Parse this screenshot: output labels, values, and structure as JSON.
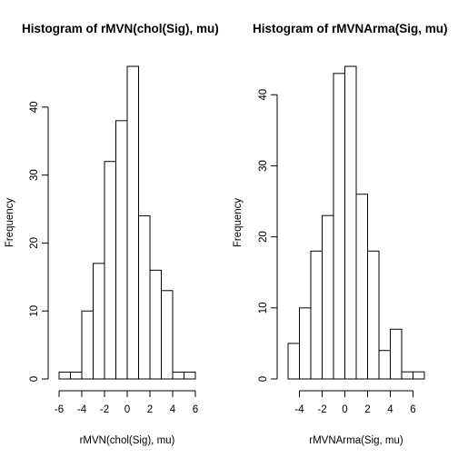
{
  "chart_data": [
    {
      "type": "bar",
      "title": "Histogram of rMVN(chol(Sig), mu)",
      "xlabel": "rMVN(chol(Sig), mu)",
      "ylabel": "Frequency",
      "breaks": [
        -6,
        -5,
        -4,
        -3,
        -2,
        -1,
        0,
        1,
        2,
        3,
        4,
        5,
        6
      ],
      "values": [
        1,
        1,
        10,
        17,
        32,
        38,
        46,
        24,
        16,
        13,
        1,
        1
      ],
      "xlim": [
        -6,
        6
      ],
      "ylim": [
        0,
        46
      ],
      "x_ticks": [
        -6,
        -4,
        -2,
        0,
        2,
        4,
        6
      ],
      "y_ticks": [
        0,
        10,
        20,
        30,
        40
      ],
      "grid": false,
      "legend": "none"
    },
    {
      "type": "bar",
      "title": "Histogram of rMVNArma(Sig, mu)",
      "xlabel": "rMVNArma(Sig, mu)",
      "ylabel": "Frequency",
      "breaks": [
        -5,
        -4,
        -3,
        -2,
        -1,
        0,
        1,
        2,
        3,
        4,
        5,
        6,
        7
      ],
      "values": [
        5,
        10,
        18,
        23,
        43,
        44,
        26,
        18,
        4,
        7,
        1,
        1
      ],
      "xlim": [
        -5,
        7
      ],
      "ylim": [
        0,
        44
      ],
      "x_ticks": [
        -4,
        -2,
        0,
        2,
        4,
        6
      ],
      "y_ticks": [
        0,
        10,
        20,
        30,
        40
      ],
      "grid": false,
      "legend": "none"
    }
  ]
}
